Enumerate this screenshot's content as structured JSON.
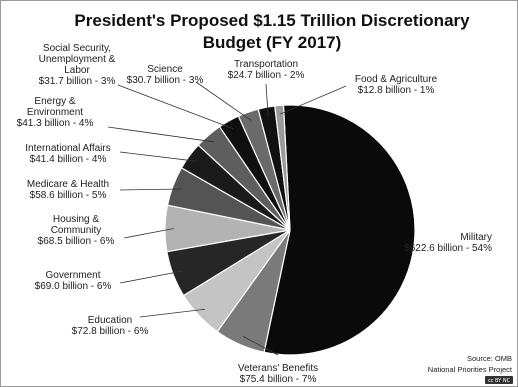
{
  "chart_data": {
    "type": "pie",
    "title_lines": [
      "President's Proposed $1.15 Trillion Discretionary",
      "Budget (FY 2017)"
    ],
    "unit": "billion",
    "slices": [
      {
        "name": "Military",
        "value": 622.6,
        "percent": 54,
        "label_lines": [
          "Military",
          "$622.6 billion - 54%"
        ],
        "color": "#0a0a0a"
      },
      {
        "name": "Veterans' Benefits",
        "value": 75.4,
        "percent": 7,
        "label_lines": [
          "Veterans' Benefits",
          "$75.4 billion - 7%"
        ],
        "color": "#7a7a7a"
      },
      {
        "name": "Education",
        "value": 72.8,
        "percent": 6,
        "label_lines": [
          "Education",
          "$72.8 billion - 6%"
        ],
        "color": "#c4c4c4"
      },
      {
        "name": "Government",
        "value": 69.0,
        "percent": 6,
        "label_lines": [
          "Government",
          "$69.0 billion - 6%"
        ],
        "color": "#262626"
      },
      {
        "name": "Housing & Community",
        "value": 68.5,
        "percent": 6,
        "label_lines": [
          "Housing &",
          "Community",
          "$68.5 billion - 6%"
        ],
        "color": "#b3b3b3"
      },
      {
        "name": "Medicare & Health",
        "value": 58.6,
        "percent": 5,
        "label_lines": [
          "Medicare & Health",
          "$58.6 billion - 5%"
        ],
        "color": "#545454"
      },
      {
        "name": "International Affairs",
        "value": 41.4,
        "percent": 4,
        "label_lines": [
          "International Affairs",
          "$41.4 billion - 4%"
        ],
        "color": "#1a1a1a"
      },
      {
        "name": "Energy & Environment",
        "value": 41.3,
        "percent": 4,
        "label_lines": [
          "Energy &",
          "Environment",
          "$41.3 billion - 4%"
        ],
        "color": "#5e5e5e"
      },
      {
        "name": "Social Security, Unemployment & Labor",
        "value": 31.7,
        "percent": 3,
        "label_lines": [
          "Social Security,",
          "Unemployment &",
          "Labor",
          "$31.7 billion - 3%"
        ],
        "color": "#0f0f0f"
      },
      {
        "name": "Science",
        "value": 30.7,
        "percent": 3,
        "label_lines": [
          "Science",
          "$30.7 billion - 3%"
        ],
        "color": "#6a6a6a"
      },
      {
        "name": "Transportation",
        "value": 24.7,
        "percent": 2,
        "label_lines": [
          "Transportation",
          "$24.7 billion - 2%"
        ],
        "color": "#111111"
      },
      {
        "name": "Food & Agriculture",
        "value": 12.8,
        "percent": 1,
        "label_lines": [
          "Food & Agriculture",
          "$12.8 billion - 1%"
        ],
        "color": "#9a9a9a"
      }
    ],
    "source_lines": [
      "Source: OMB",
      "National Priorities Project"
    ],
    "license_badge": "cc BY NC"
  }
}
